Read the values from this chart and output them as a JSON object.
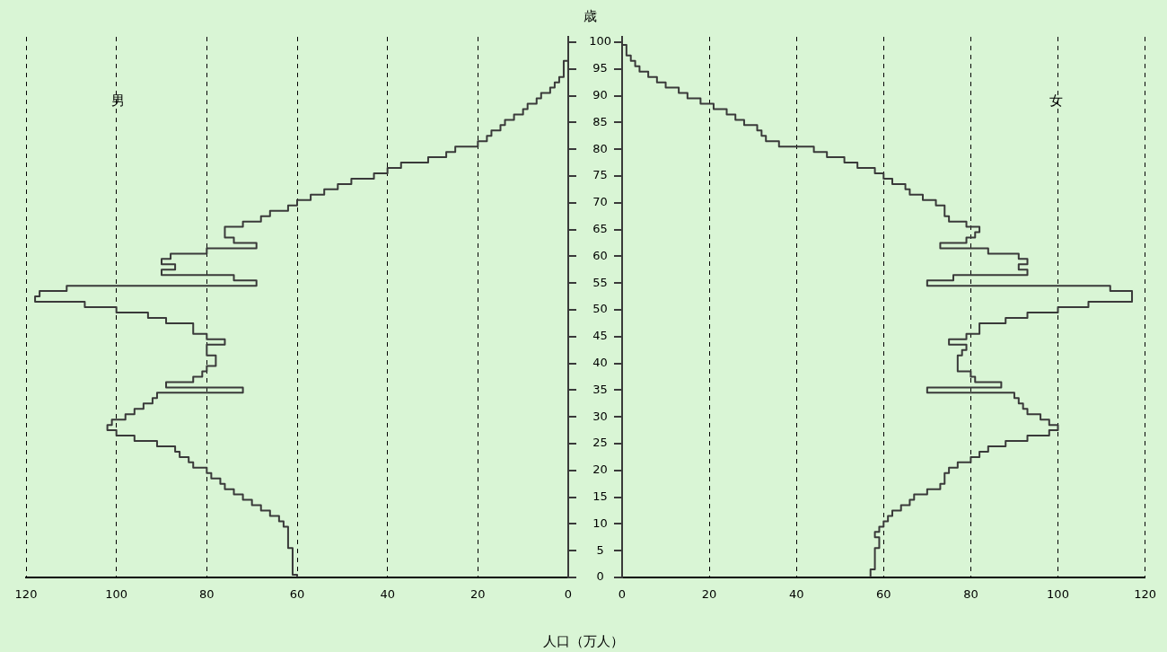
{
  "chart_data": [
    {
      "type": "step",
      "orientation": "horizontal",
      "xlabel": "人口（万人）",
      "annotations": [
        "男"
      ],
      "x": [
        0,
        1,
        2,
        3,
        4,
        5,
        6,
        7,
        8,
        9,
        10,
        11,
        12,
        13,
        14,
        15,
        16,
        17,
        18,
        19,
        20,
        21,
        22,
        23,
        24,
        25,
        26,
        27,
        28,
        29,
        30,
        31,
        32,
        33,
        34,
        35,
        36,
        37,
        38,
        39,
        40,
        41,
        42,
        43,
        44,
        45,
        46,
        47,
        48,
        49,
        50,
        51,
        52,
        53,
        54,
        55,
        56,
        57,
        58,
        59,
        60,
        61,
        62,
        63,
        64,
        65,
        66,
        67,
        68,
        69,
        70,
        71,
        72,
        73,
        74,
        75,
        76,
        77,
        78,
        79,
        80,
        81,
        82,
        83,
        84,
        85,
        86,
        87,
        88,
        89,
        90,
        91,
        92,
        93,
        94,
        95,
        96,
        97,
        98,
        99,
        100
      ],
      "values": [
        60,
        61,
        61,
        61,
        61,
        61,
        62,
        62,
        62,
        62,
        63,
        64,
        66,
        68,
        70,
        72,
        74,
        76,
        77,
        79,
        80,
        83,
        84,
        86,
        87,
        91,
        96,
        100,
        102,
        101,
        98,
        96,
        94,
        92,
        91,
        72,
        89,
        83,
        81,
        80,
        78,
        78,
        80,
        80,
        76,
        80,
        83,
        83,
        89,
        93,
        100,
        107,
        118,
        117,
        111,
        69,
        74,
        90,
        87,
        90,
        88,
        80,
        69,
        74,
        76,
        76,
        72,
        68,
        66,
        62,
        60,
        57,
        54,
        51,
        48,
        43,
        40,
        37,
        31,
        27,
        25,
        20,
        18,
        17,
        15,
        14,
        12,
        10,
        9,
        7,
        6,
        4,
        3,
        2,
        1,
        1,
        1,
        0,
        0,
        0,
        0
      ],
      "color": "#3a3a3a",
      "xlim": [
        120,
        0
      ],
      "xticks": [
        120,
        100,
        80,
        60,
        40,
        20,
        0
      ],
      "ylim": [
        0,
        101
      ],
      "yticks": [
        0,
        5,
        10,
        15,
        20,
        25,
        30,
        35,
        40,
        45,
        50,
        55,
        60,
        65,
        70,
        75,
        80,
        85,
        90,
        95,
        100
      ],
      "tick_labels": "x",
      "grid": "x",
      "line_style": "solid",
      "legend": false
    },
    {
      "type": "step",
      "orientation": "horizontal",
      "ylabel": "歳",
      "annotations": [
        "女"
      ],
      "x": [
        0,
        1,
        2,
        3,
        4,
        5,
        6,
        7,
        8,
        9,
        10,
        11,
        12,
        13,
        14,
        15,
        16,
        17,
        18,
        19,
        20,
        21,
        22,
        23,
        24,
        25,
        26,
        27,
        28,
        29,
        30,
        31,
        32,
        33,
        34,
        35,
        36,
        37,
        38,
        39,
        40,
        41,
        42,
        43,
        44,
        45,
        46,
        47,
        48,
        49,
        50,
        51,
        52,
        53,
        54,
        55,
        56,
        57,
        58,
        59,
        60,
        61,
        62,
        63,
        64,
        65,
        66,
        67,
        68,
        69,
        70,
        71,
        72,
        73,
        74,
        75,
        76,
        77,
        78,
        79,
        80,
        81,
        82,
        83,
        84,
        85,
        86,
        87,
        88,
        89,
        90,
        91,
        92,
        93,
        94,
        95,
        96,
        97,
        98,
        99,
        100
      ],
      "values": [
        57,
        57,
        58,
        58,
        58,
        58,
        59,
        59,
        58,
        59,
        60,
        61,
        62,
        64,
        66,
        67,
        70,
        73,
        74,
        74,
        75,
        77,
        80,
        82,
        84,
        88,
        93,
        98,
        100,
        98,
        96,
        93,
        92,
        91,
        90,
        70,
        87,
        81,
        80,
        77,
        77,
        77,
        78,
        79,
        75,
        79,
        82,
        82,
        88,
        93,
        100,
        107,
        117,
        117,
        112,
        70,
        76,
        93,
        91,
        93,
        91,
        84,
        73,
        79,
        81,
        82,
        79,
        75,
        74,
        74,
        72,
        69,
        66,
        65,
        62,
        60,
        58,
        54,
        51,
        47,
        44,
        36,
        33,
        32,
        31,
        28,
        26,
        24,
        21,
        18,
        15,
        13,
        10,
        8,
        6,
        4,
        3,
        2,
        1,
        1,
        0
      ],
      "color": "#3a3a3a",
      "xlim": [
        0,
        120
      ],
      "xticks": [
        0,
        20,
        40,
        60,
        80,
        100,
        120
      ],
      "ylim": [
        0,
        101
      ],
      "yticks": [
        0,
        5,
        10,
        15,
        20,
        25,
        30,
        35,
        40,
        45,
        50,
        55,
        60,
        65,
        70,
        75,
        80,
        85,
        90,
        95,
        100
      ],
      "grid": "x",
      "line_style": "solid",
      "legend": false
    }
  ]
}
